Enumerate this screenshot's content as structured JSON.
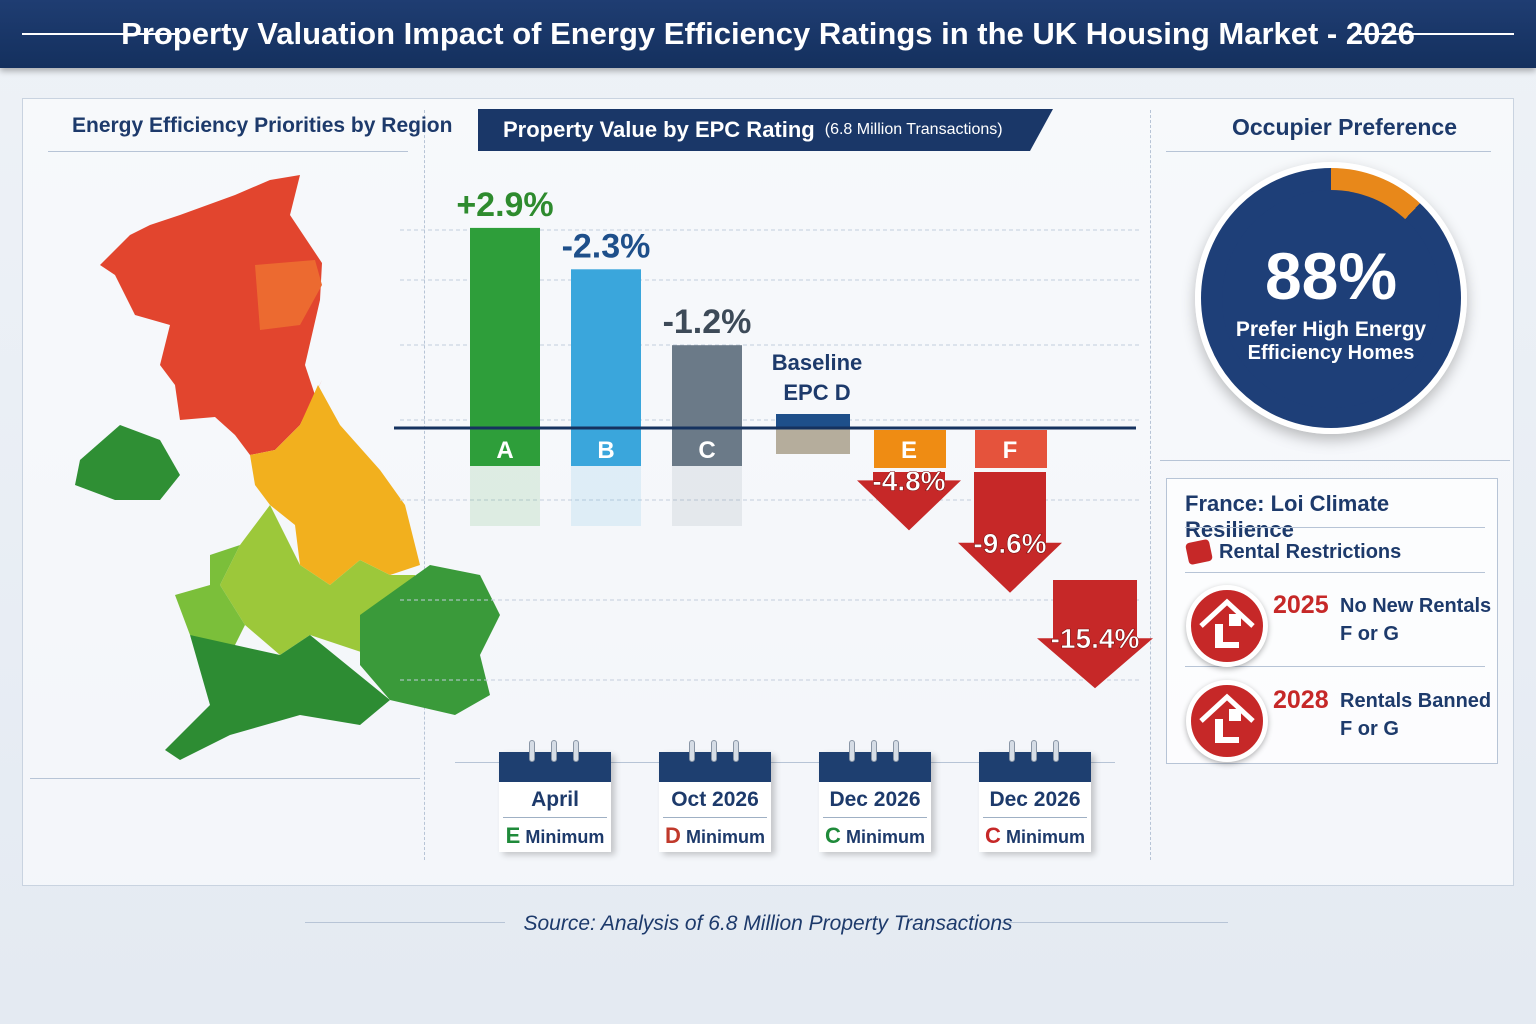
{
  "title": "Property Valuation Impact of Energy Efficiency Ratings in the UK Housing Market - 2026",
  "map": {
    "title": "Energy Efficiency Priorities by Region"
  },
  "chart_data": {
    "type": "bar",
    "title": "Property Value by EPC Rating",
    "subtitle": "(6.8 Million Transactions)",
    "categories": [
      "A",
      "B",
      "C",
      "D",
      "E",
      "F",
      ""
    ],
    "values": [
      2.9,
      -2.3,
      -1.2,
      0,
      -4.8,
      -9.6,
      -15.4
    ],
    "value_labels": [
      "+2.9%",
      "-2.3%",
      "-1.2%",
      "",
      "-4.8%",
      "-9.6%",
      "-15.4%"
    ],
    "baseline_label": [
      "Baseline",
      "EPC D"
    ],
    "colors": [
      "#2e9e3a",
      "#3aa6dc",
      "#6b7a88",
      "#1e4f8a",
      "#ef8c13",
      "#e5533c",
      "#c62828"
    ],
    "unit": "%"
  },
  "occupier": {
    "title": "Occupier Preference",
    "value": "88%",
    "percent": 88,
    "caption_1": "Prefer High Energy",
    "caption_2": "Efficiency Homes",
    "colors": {
      "major": "#1e3f78",
      "minor": "#e8881a"
    }
  },
  "france": {
    "title": "France: Loi Climate Resilience",
    "subtitle": "Rental Restrictions",
    "items": [
      {
        "year": "2025",
        "text_1": "No New Rentals",
        "text_2": "F or G",
        "icon": "house-icon"
      },
      {
        "year": "2028",
        "text_1": "Rentals Banned",
        "text_2": "F or G",
        "icon": "house-icon"
      }
    ]
  },
  "timeline": [
    {
      "date": "April",
      "rating": "E",
      "label": "Minimum",
      "color": "#1f8a3a"
    },
    {
      "date": "Oct 2026",
      "rating": "D",
      "label": "Minimum",
      "color": "#c0392b"
    },
    {
      "date": "Dec 2026",
      "rating": "C",
      "label": "Minimum",
      "color": "#1f8a3a"
    },
    {
      "date": "Dec 2026",
      "rating": "C",
      "label": "Minimum",
      "color": "#c62828"
    }
  ],
  "source": "Source: Analysis of 6.8 Million Property Transactions"
}
